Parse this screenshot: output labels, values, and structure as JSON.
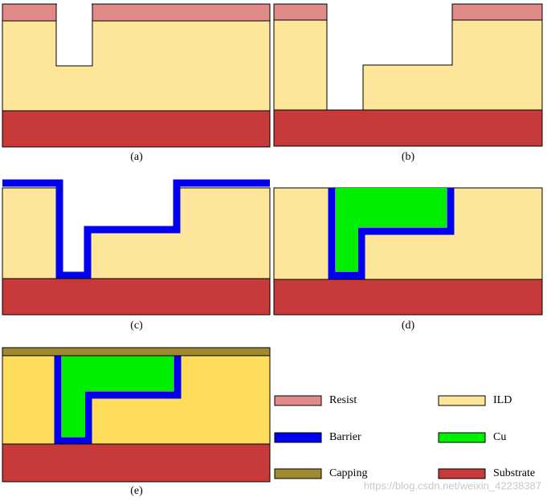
{
  "panels": [
    {
      "label": "(a)"
    },
    {
      "label": "(b)"
    },
    {
      "label": "(c)"
    },
    {
      "label": "(d)"
    },
    {
      "label": "(e)"
    }
  ],
  "legend": [
    {
      "name": "Resist"
    },
    {
      "name": "ILD"
    },
    {
      "name": "Barrier"
    },
    {
      "name": "Cu"
    },
    {
      "name": "Capping"
    },
    {
      "name": "Substrate"
    }
  ],
  "watermark": "https://blog.csdn.net/weixin_42238387"
}
